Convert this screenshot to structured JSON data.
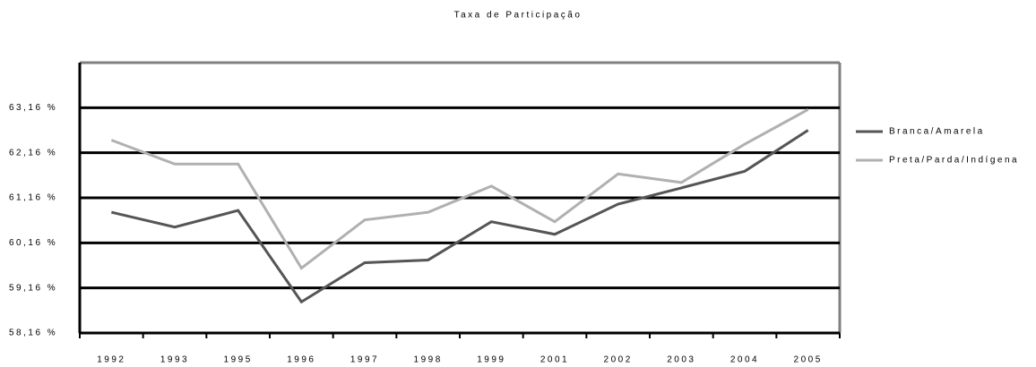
{
  "chart_data": {
    "type": "line",
    "title": "Taxa de Participação",
    "categories": [
      "1992",
      "1993",
      "1995",
      "1996",
      "1997",
      "1998",
      "1999",
      "2001",
      "2002",
      "2003",
      "2004",
      "2005"
    ],
    "series": [
      {
        "name": "Branca/Amarela",
        "color": "#555555",
        "values": [
          60.84,
          60.51,
          60.88,
          58.85,
          59.72,
          59.78,
          60.63,
          60.35,
          61.02,
          61.38,
          61.75,
          62.66
        ]
      },
      {
        "name": "Preta/Parda/Indígena",
        "color": "#b0b0b0",
        "values": [
          62.44,
          61.91,
          61.91,
          59.6,
          60.67,
          60.84,
          61.42,
          60.63,
          61.69,
          61.5,
          62.35,
          63.12
        ]
      }
    ],
    "ylim": [
      58.16,
      64.16
    ],
    "yticks": [
      {
        "value": 58.16,
        "label": "58,16 %"
      },
      {
        "value": 59.16,
        "label": "59,16 %"
      },
      {
        "value": 60.16,
        "label": "60,16 %"
      },
      {
        "value": 61.16,
        "label": "61,16 %"
      },
      {
        "value": 62.16,
        "label": "62,16 %"
      },
      {
        "value": 63.16,
        "label": "63,16 %"
      }
    ],
    "grid": true,
    "legend": "right"
  }
}
